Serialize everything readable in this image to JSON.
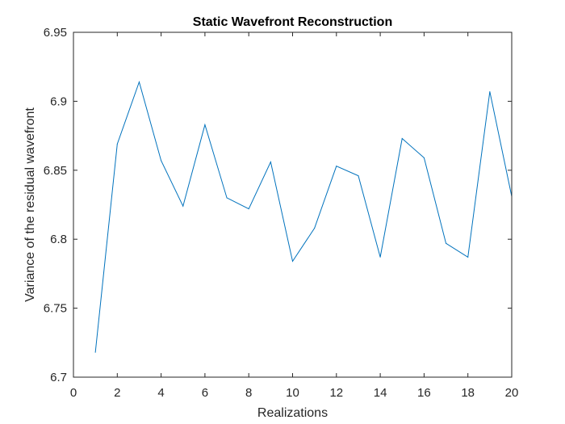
{
  "chart_data": {
    "type": "line",
    "title": "Static Wavefront Reconstruction",
    "xlabel": "Realizations",
    "ylabel": "Variance of the residual wavefront",
    "xlim": [
      0,
      20
    ],
    "ylim": [
      6.7,
      6.95
    ],
    "xticks": [
      "0",
      "2",
      "4",
      "6",
      "8",
      "10",
      "12",
      "14",
      "16",
      "18",
      "20"
    ],
    "yticks": [
      "6.7",
      "6.75",
      "6.8",
      "6.85",
      "6.9",
      "6.95"
    ],
    "grid": false,
    "series": [
      {
        "color": "#0072bd",
        "x": [
          1,
          2,
          3,
          4,
          5,
          6,
          7,
          8,
          9,
          10,
          11,
          12,
          13,
          14,
          15,
          16,
          17,
          18,
          19,
          20
        ],
        "y": [
          6.718,
          6.869,
          6.914,
          6.857,
          6.824,
          6.883,
          6.83,
          6.822,
          6.856,
          6.784,
          6.808,
          6.853,
          6.846,
          6.787,
          6.873,
          6.859,
          6.797,
          6.787,
          6.907,
          6.831
        ]
      }
    ]
  }
}
